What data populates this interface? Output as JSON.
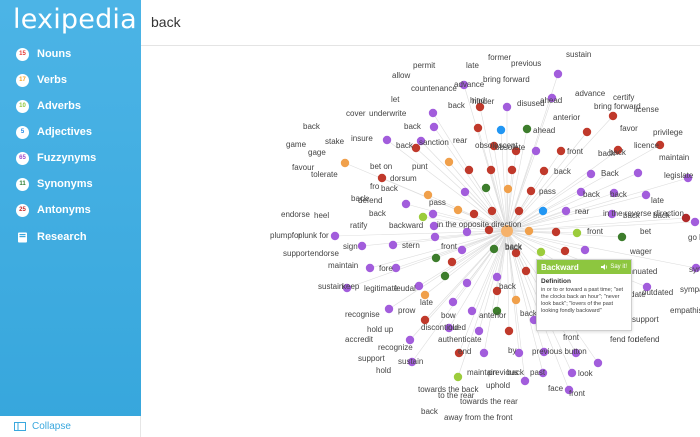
{
  "app": {
    "logo": "lexipedia"
  },
  "sidebar": {
    "items": [
      {
        "label": "Nouns",
        "count": "15",
        "color": "#e53935",
        "icon": "noun-badge"
      },
      {
        "label": "Verbs",
        "count": "17",
        "color": "#f5a623",
        "icon": "verb-badge"
      },
      {
        "label": "Adverbs",
        "count": "10",
        "color": "#8dc63f",
        "icon": "adverb-badge"
      },
      {
        "label": "Adjectives",
        "count": "5",
        "color": "#1e88e5",
        "icon": "adjective-badge"
      },
      {
        "label": "Fuzzynyms",
        "count": "65",
        "color": "#9c4dcc",
        "icon": "fuzzynym-badge"
      },
      {
        "label": "Synonyms",
        "count": "11",
        "color": "#2e7d32",
        "icon": "synonym-badge"
      },
      {
        "label": "Antonyms",
        "count": "25",
        "color": "#c62828",
        "icon": "antonym-badge"
      },
      {
        "label": "Research",
        "count": "",
        "color": "#ffffff",
        "icon": "book-icon"
      }
    ],
    "collapse_label": "Collapse"
  },
  "search": {
    "value": "back"
  },
  "graph": {
    "center_word": "back",
    "node_colors": {
      "purple": "#a25ddc",
      "red": "#c0392b",
      "orange": "#f0a04b",
      "lime": "#9ccc3c",
      "green": "#3d7d2c",
      "blue": "#2196f3",
      "darkred": "#b02a2a",
      "edge": "#dddddd",
      "center": "#f6b26b"
    },
    "words": [
      "former",
      "previous",
      "sustain",
      "permit",
      "late",
      "allow",
      "bring forward",
      "countenance",
      "advance",
      "let",
      "hinder",
      "advance",
      "certify",
      "hind",
      "disused",
      "ahead",
      "bring forward",
      "license",
      "cover",
      "underwrite",
      "back",
      "anterior",
      "back",
      "stake",
      "insure",
      "back",
      "back",
      "ahead",
      "favor",
      "privilege",
      "game",
      "sanction",
      "rear",
      "obsolescent",
      "obsolete",
      "licence",
      "gage",
      "back",
      "front",
      "back",
      "maintain",
      "favour",
      "punt",
      "tolerate",
      "bet on",
      "back",
      "Back",
      "dorsum",
      "legislate",
      "back",
      "fro",
      "back",
      "back",
      "defend",
      "late",
      "pass",
      "pass",
      "in the reverse direction",
      "back",
      "back",
      "rear",
      "back",
      "endorse",
      "heel",
      "back",
      "backward",
      "ratify",
      "front",
      "bet",
      "go b",
      "plumpfor",
      "plunk for",
      "in the opposite direction",
      "sign",
      "stern",
      "front",
      "back",
      "wager",
      "support",
      "endorse",
      "maintain",
      "fore",
      "syn",
      "feudal",
      "superannuated",
      "sustain",
      "keep",
      "legitimate",
      "back",
      "outdated",
      "sympa",
      "back",
      "out-of-date",
      "recognise",
      "prow",
      "late",
      "bow",
      "support",
      "empathise",
      "discontinued",
      "old",
      "anterior",
      "back",
      "hold up",
      "accredit",
      "authenticate",
      "front",
      "fend for",
      "defend",
      "recognize",
      "end",
      "by",
      "previous button",
      "support",
      "sustain",
      "previous",
      "hold",
      "maintain",
      "back",
      "past",
      "look",
      "uphold",
      "face",
      "towards the back",
      "to the rear",
      "front",
      "towards the rear",
      "back",
      "away from the front"
    ]
  },
  "popup": {
    "title": "Backward",
    "say_it": "Say it!",
    "definition_label": "Definition",
    "definition": "in or to or toward a past time; \"set the clocks back an hour\"; \"never look back\"; \"lovers of the past looking fondly backward\""
  }
}
